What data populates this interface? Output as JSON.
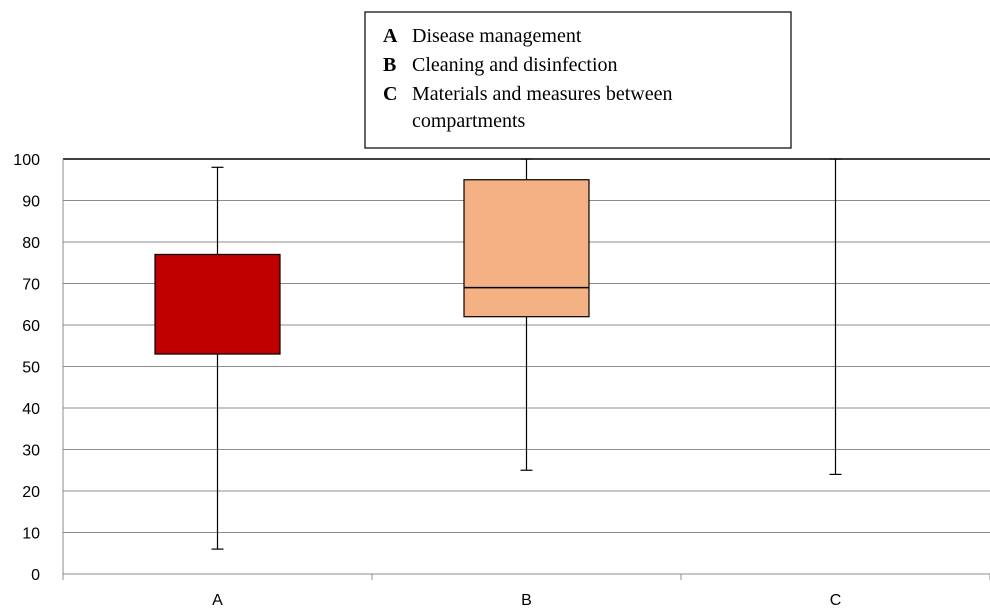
{
  "chart_data": {
    "type": "box",
    "categories": [
      "A",
      "B",
      "C"
    ],
    "ylim": [
      0,
      100
    ],
    "yticks": [
      0,
      10,
      20,
      30,
      40,
      50,
      60,
      70,
      80,
      90,
      100
    ],
    "grid": true,
    "legend_placement": "top-center",
    "legend": [
      {
        "key": "A",
        "label": "Disease management"
      },
      {
        "key": "B",
        "label": "Cleaning and disinfection"
      },
      {
        "key": "C",
        "label": "Materials and measures between compartments"
      }
    ],
    "boxes": [
      {
        "category": "A",
        "whisker_low": 6,
        "q1": 53,
        "median": 53,
        "q3": 77,
        "whisker_high": 98,
        "color": "#C00000"
      },
      {
        "category": "B",
        "whisker_low": 25,
        "q1": 62,
        "median": 69,
        "q3": 95,
        "whisker_high": 100,
        "color": "#F4B183"
      },
      {
        "category": "C",
        "whisker_low": 24,
        "q1": 100,
        "median": 100,
        "q3": 100,
        "whisker_high": 100,
        "color": "#FFFFFF"
      }
    ]
  }
}
